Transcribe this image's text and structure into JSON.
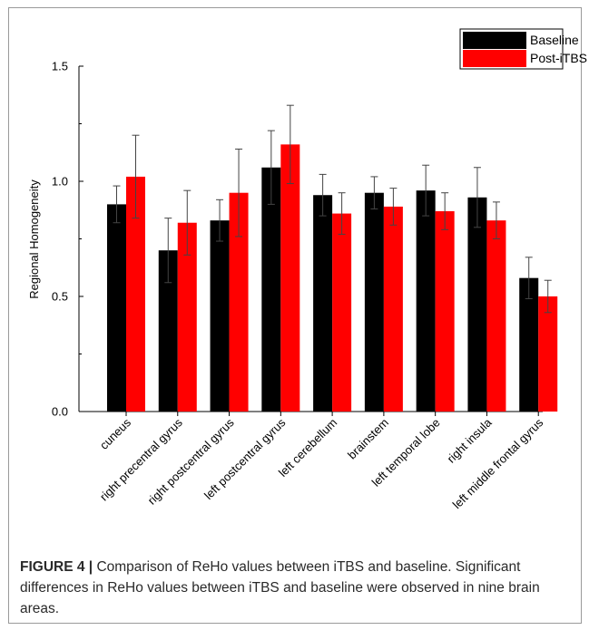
{
  "figure": {
    "caption_label": "FIGURE 4 |",
    "caption_text": "Comparison of ReHo values between iTBS and baseline. Significant differences in ReHo values between iTBS and baseline were observed in nine brain areas."
  },
  "chart_data": {
    "type": "bar",
    "ylabel": "Regional Homogeneity",
    "xlabel": "",
    "ylim": [
      0.0,
      1.5
    ],
    "yticks": [
      "0.0",
      "0.5",
      "1.0",
      "1.5"
    ],
    "grid": false,
    "legend_position": "top-right",
    "categories": [
      "cuneus",
      "right precentral gyrus",
      "right postcentral gyrus",
      "left postcentral gyrus",
      "left cerebellum",
      "brainstem",
      "left temporal lobe",
      "right insula",
      "left middle frontal gyrus"
    ],
    "series": [
      {
        "name": "Baseline",
        "color": "#000000",
        "values": [
          0.9,
          0.7,
          0.83,
          1.06,
          0.94,
          0.95,
          0.96,
          0.93,
          0.58
        ],
        "errors": [
          0.08,
          0.14,
          0.09,
          0.16,
          0.09,
          0.07,
          0.11,
          0.13,
          0.09
        ]
      },
      {
        "name": "Post-iTBS",
        "color": "#ff0000",
        "values": [
          1.02,
          0.82,
          0.95,
          1.16,
          0.86,
          0.89,
          0.87,
          0.83,
          0.5
        ],
        "errors": [
          0.18,
          0.14,
          0.19,
          0.17,
          0.09,
          0.08,
          0.08,
          0.08,
          0.07
        ]
      }
    ]
  }
}
